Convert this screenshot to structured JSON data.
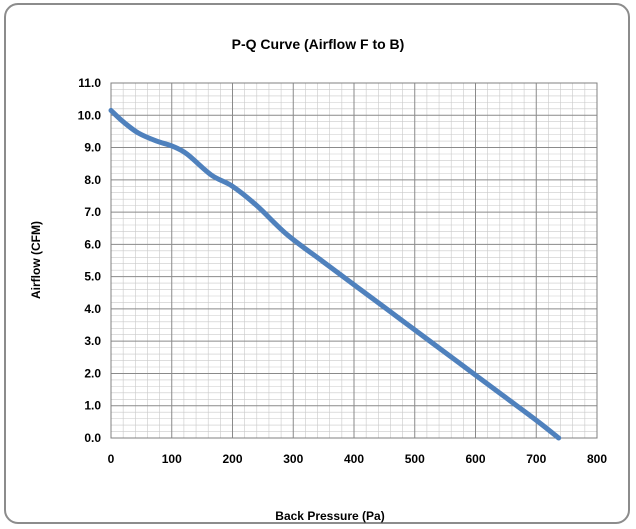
{
  "chart_data": {
    "type": "line",
    "title": "P-Q Curve   (Airflow F to B)",
    "xlabel": "Back Pressure  (Pa)",
    "ylabel": "Airflow  (CFM)",
    "xlim": [
      0,
      800
    ],
    "ylim": [
      0,
      11
    ],
    "x_ticks": [
      "0",
      "100",
      "200",
      "300",
      "400",
      "500",
      "600",
      "700",
      "800"
    ],
    "y_ticks": [
      "0.0",
      "1.0",
      "2.0",
      "3.0",
      "4.0",
      "5.0",
      "6.0",
      "7.0",
      "8.0",
      "9.0",
      "10.0",
      "11.0"
    ],
    "grid": true,
    "legend": "none",
    "line_color": "#4f81bd",
    "series": [
      {
        "x": [
          0,
          20,
          45,
          75,
          100,
          125,
          165,
          200,
          240,
          290,
          350,
          400,
          450,
          500,
          550,
          600,
          650,
          700,
          737
        ],
        "values": [
          10.15,
          9.8,
          9.45,
          9.2,
          9.05,
          8.8,
          8.15,
          7.8,
          7.2,
          6.3,
          5.45,
          4.75,
          4.05,
          3.35,
          2.65,
          1.95,
          1.25,
          0.55,
          0.0
        ]
      }
    ]
  }
}
